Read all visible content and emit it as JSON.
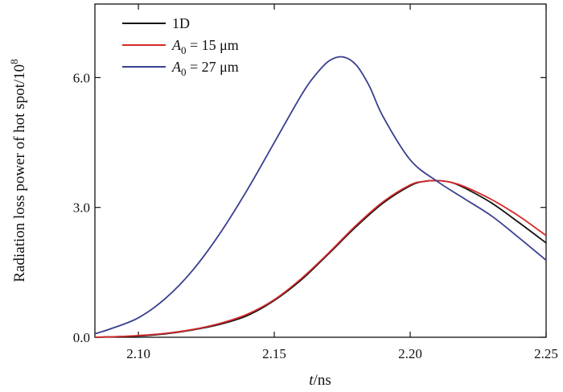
{
  "chart_data": {
    "type": "line",
    "title": "",
    "xlabel": {
      "italic": "t",
      "rest": "/ns"
    },
    "ylabel": "Radiation loss power of hot spot/10",
    "ylabel_exponent": "8",
    "xlim": [
      2.084,
      2.25
    ],
    "ylim": [
      0,
      7.7
    ],
    "xticks": [
      2.1,
      2.15,
      2.2,
      2.25
    ],
    "xtick_labels": [
      "2.10",
      "2.15",
      "2.20",
      "2.25"
    ],
    "yticks": [
      0.0,
      3.0,
      6.0
    ],
    "ytick_labels": [
      "0.0",
      "3.0",
      "6.0"
    ],
    "grid": false,
    "legend_position": "top-left",
    "series": [
      {
        "name": "1D",
        "legend": {
          "main": "1D"
        },
        "color": "#111111",
        "x": [
          2.084,
          2.09,
          2.1,
          2.11,
          2.12,
          2.13,
          2.14,
          2.15,
          2.16,
          2.17,
          2.18,
          2.19,
          2.2,
          2.205,
          2.21,
          2.215,
          2.22,
          2.23,
          2.24,
          2.25
        ],
        "y": [
          0.0,
          0.01,
          0.03,
          0.08,
          0.17,
          0.3,
          0.5,
          0.85,
          1.33,
          1.93,
          2.55,
          3.1,
          3.5,
          3.6,
          3.62,
          3.58,
          3.45,
          3.1,
          2.65,
          2.18
        ]
      },
      {
        "name": "A0 = 15 μm",
        "legend": {
          "italic": "A",
          "sub": "0",
          "rest": " = 15 μm"
        },
        "color": "#d42a2a",
        "x": [
          2.084,
          2.09,
          2.1,
          2.11,
          2.12,
          2.13,
          2.14,
          2.15,
          2.16,
          2.17,
          2.18,
          2.19,
          2.2,
          2.205,
          2.21,
          2.215,
          2.22,
          2.23,
          2.24,
          2.25
        ],
        "y": [
          0.0,
          0.01,
          0.04,
          0.09,
          0.18,
          0.32,
          0.53,
          0.87,
          1.36,
          1.95,
          2.58,
          3.13,
          3.52,
          3.6,
          3.62,
          3.58,
          3.48,
          3.18,
          2.8,
          2.35
        ]
      },
      {
        "name": "A0 = 27 μm",
        "legend": {
          "italic": "A",
          "sub": "0",
          "rest": " = 27 μm"
        },
        "color": "#3a3f8f",
        "x": [
          2.084,
          2.09,
          2.1,
          2.11,
          2.12,
          2.13,
          2.14,
          2.15,
          2.16,
          2.165,
          2.17,
          2.175,
          2.18,
          2.185,
          2.19,
          2.2,
          2.21,
          2.22,
          2.23,
          2.24,
          2.25
        ],
        "y": [
          0.08,
          0.2,
          0.45,
          0.9,
          1.55,
          2.4,
          3.4,
          4.5,
          5.6,
          6.05,
          6.38,
          6.48,
          6.3,
          5.8,
          5.1,
          4.1,
          3.6,
          3.2,
          2.8,
          2.3,
          1.78
        ]
      }
    ]
  }
}
